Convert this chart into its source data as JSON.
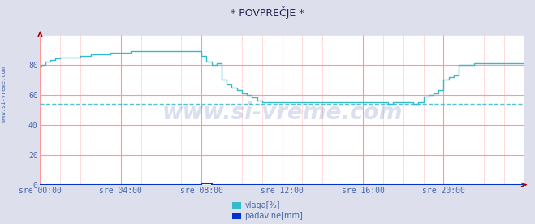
{
  "title": "* POVPREČJE *",
  "background_color": "#dde0ec",
  "plot_background": "#ffffff",
  "grid_color_major": "#ff9999",
  "grid_color_minor": "#ffcccc",
  "dashed_line_value": 54,
  "dashed_line_color": "#44bbcc",
  "xlabel_color": "#4466aa",
  "ylabel_color": "#4466aa",
  "title_color": "#222255",
  "watermark": "www.si-vreme.com",
  "watermark_color": "#3355aa",
  "watermark_alpha": 0.18,
  "xlim_hours": [
    0,
    24
  ],
  "ylim": [
    0,
    100
  ],
  "yticks": [
    0,
    20,
    40,
    60,
    80
  ],
  "xtick_labels": [
    "sre 00:00",
    "sre 04:00",
    "sre 08:00",
    "sre 12:00",
    "sre 16:00",
    "sre 20:00"
  ],
  "xtick_positions": [
    0,
    4,
    8,
    12,
    16,
    20
  ],
  "vlaga_color": "#33bbcc",
  "padavine_color": "#0033cc",
  "legend_vlaga": "vlaga[%]",
  "legend_padavine": "padavine[mm]",
  "arrow_color": "#aa0000",
  "left_label": "www.si-vreme.com",
  "left_label_color": "#4466aa",
  "vlaga_data": [
    [
      0.0,
      79
    ],
    [
      0.083,
      80
    ],
    [
      0.25,
      82
    ],
    [
      0.5,
      83
    ],
    [
      0.75,
      84
    ],
    [
      1.0,
      85
    ],
    [
      1.5,
      85
    ],
    [
      2.0,
      86
    ],
    [
      2.5,
      87
    ],
    [
      3.0,
      87
    ],
    [
      3.5,
      88
    ],
    [
      4.0,
      88
    ],
    [
      4.5,
      89
    ],
    [
      5.0,
      89
    ],
    [
      5.5,
      89
    ],
    [
      6.0,
      89
    ],
    [
      6.5,
      89
    ],
    [
      7.0,
      89
    ],
    [
      7.5,
      89
    ],
    [
      7.75,
      89
    ],
    [
      8.0,
      86
    ],
    [
      8.25,
      82
    ],
    [
      8.5,
      80
    ],
    [
      8.75,
      81
    ],
    [
      9.0,
      70
    ],
    [
      9.25,
      67
    ],
    [
      9.5,
      65
    ],
    [
      9.75,
      63
    ],
    [
      10.0,
      61
    ],
    [
      10.25,
      60
    ],
    [
      10.5,
      58
    ],
    [
      10.75,
      56
    ],
    [
      11.0,
      55
    ],
    [
      11.25,
      55
    ],
    [
      11.5,
      55
    ],
    [
      12.0,
      55
    ],
    [
      12.5,
      55
    ],
    [
      13.0,
      55
    ],
    [
      13.5,
      55
    ],
    [
      14.0,
      55
    ],
    [
      14.5,
      55
    ],
    [
      15.0,
      55
    ],
    [
      15.5,
      55
    ],
    [
      16.0,
      55
    ],
    [
      16.5,
      55
    ],
    [
      17.0,
      55
    ],
    [
      17.25,
      54
    ],
    [
      17.5,
      55
    ],
    [
      18.0,
      55
    ],
    [
      18.5,
      54
    ],
    [
      18.75,
      55
    ],
    [
      19.0,
      59
    ],
    [
      19.25,
      60
    ],
    [
      19.5,
      61
    ],
    [
      19.75,
      63
    ],
    [
      20.0,
      70
    ],
    [
      20.25,
      72
    ],
    [
      20.5,
      73
    ],
    [
      20.75,
      80
    ],
    [
      21.0,
      80
    ],
    [
      21.5,
      81
    ],
    [
      22.0,
      81
    ],
    [
      22.5,
      81
    ],
    [
      23.0,
      81
    ],
    [
      23.5,
      81
    ],
    [
      23.99,
      81
    ]
  ],
  "padavine_data": [
    [
      0.0,
      0
    ],
    [
      7.9,
      0
    ],
    [
      8.0,
      1
    ],
    [
      8.1,
      1
    ],
    [
      8.2,
      1
    ],
    [
      8.3,
      1
    ],
    [
      8.5,
      0
    ],
    [
      23.99,
      0
    ]
  ]
}
